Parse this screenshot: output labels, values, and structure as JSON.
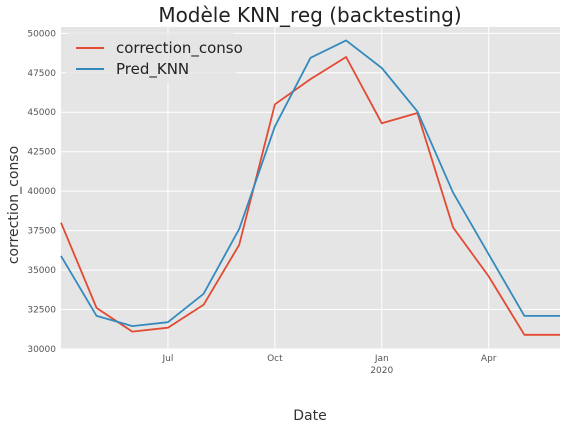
{
  "chart_data": {
    "type": "line",
    "title": "Modèle KNN_reg (backtesting)",
    "xlabel": "Date",
    "ylabel": "correction_conso",
    "x": [
      "2019-04",
      "2019-05",
      "2019-06",
      "2019-07",
      "2019-08",
      "2019-09",
      "2019-10",
      "2019-11",
      "2019-12",
      "2020-01",
      "2020-02",
      "2020-03",
      "2020-04",
      "2020-05",
      "2020-06"
    ],
    "x_ticks": [
      {
        "date": "2019-07",
        "label": "Jul",
        "sublabel": ""
      },
      {
        "date": "2019-10",
        "label": "Oct",
        "sublabel": ""
      },
      {
        "date": "2020-01",
        "label": "Jan",
        "sublabel": "2020"
      },
      {
        "date": "2020-04",
        "label": "Apr",
        "sublabel": ""
      }
    ],
    "ylim": [
      30000,
      50400
    ],
    "y_ticks": [
      30000,
      32500,
      35000,
      37500,
      40000,
      42500,
      45000,
      47500,
      50000
    ],
    "grid": true,
    "legend_position": "top-left",
    "series": [
      {
        "name": "correction_conso",
        "color": "#E24A33",
        "values": [
          38000,
          32600,
          31100,
          31350,
          32800,
          36600,
          45500,
          47100,
          48500,
          44300,
          44950,
          37700,
          34600,
          30900,
          30900
        ]
      },
      {
        "name": "Pred_KNN",
        "color": "#348ABD",
        "values": [
          35900,
          32100,
          31450,
          31700,
          33500,
          37600,
          44100,
          48450,
          49550,
          47800,
          45050,
          39900,
          36000,
          32100,
          32100
        ]
      }
    ]
  }
}
